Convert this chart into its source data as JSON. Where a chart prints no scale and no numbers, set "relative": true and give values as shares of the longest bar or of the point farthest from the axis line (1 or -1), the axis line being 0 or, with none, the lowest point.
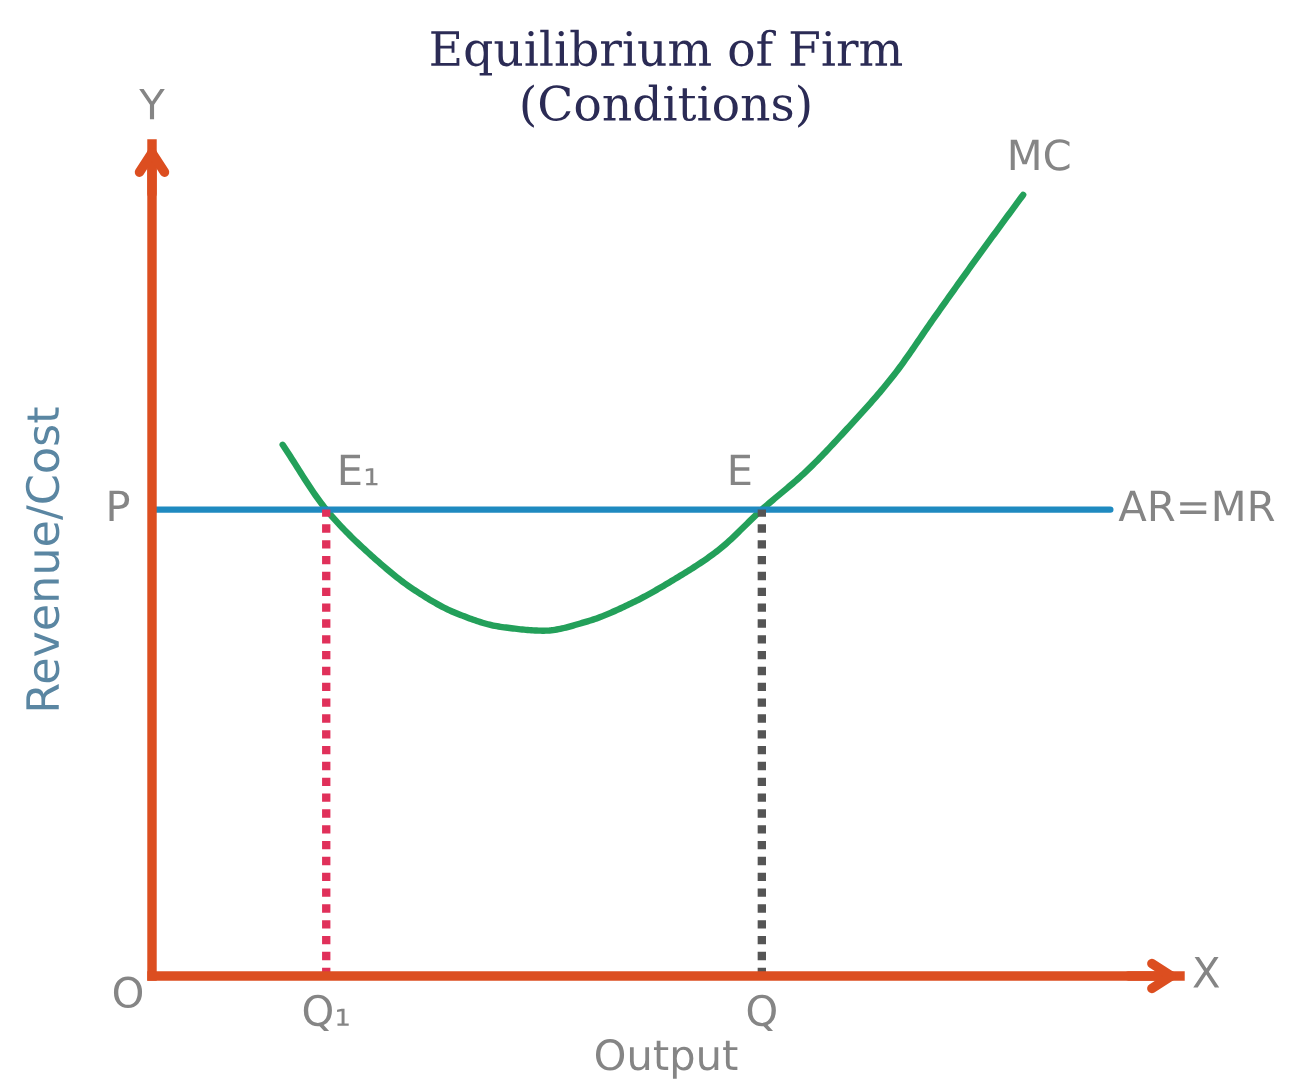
{
  "chart_data": {
    "type": "line",
    "title": "Equilibrium of Firm\n(Conditions)",
    "xlabel": "Output",
    "ylabel": "Revenue/Cost",
    "relative": true,
    "categories": [
      null,
      null,
      null,
      null,
      "Q₁",
      null,
      null,
      null,
      null,
      null,
      null,
      null,
      null,
      null,
      "Q",
      null,
      null,
      null,
      null,
      null,
      null,
      null,
      null,
      null
    ],
    "series": [
      {
        "name": "MC",
        "color": "#23a05a",
        "values": [
          null,
          null,
          null,
          0.68,
          0.597,
          0.54,
          0.495,
          0.464,
          0.447,
          0.442,
          0.454,
          0.477,
          0.508,
          0.545,
          0.597,
          0.645,
          0.703,
          0.767,
          0.846,
          0.924,
          1.0,
          null,
          null,
          null
        ]
      },
      {
        "name": "AR=MR",
        "color": "#1f8ac0",
        "values": [
          0.597,
          0.597,
          0.597,
          0.597,
          0.597,
          0.597,
          0.597,
          0.597,
          0.597,
          0.597,
          0.597,
          0.597,
          0.597,
          0.597,
          0.597,
          0.597,
          0.597,
          0.597,
          0.597,
          0.597,
          0.597,
          0.597,
          0.597,
          null
        ]
      },
      {
        "color": "#e0305a",
        "x": [
          "Q₁",
          "Q₁"
        ],
        "values": [
          0,
          0.597
        ],
        "line_style": "dashed"
      },
      {
        "color": "#555555",
        "x": [
          "Q",
          "Q"
        ],
        "values": [
          0,
          0.597
        ],
        "line_style": "dashed"
      }
    ],
    "annotations": [
      "Y",
      "X",
      "O",
      "P",
      {
        "text": "E₁",
        "x": "Q₁",
        "y": 0.597
      },
      {
        "text": "E",
        "x": "Q",
        "y": 0.597
      }
    ],
    "marker": "none",
    "line_style": "solid"
  }
}
